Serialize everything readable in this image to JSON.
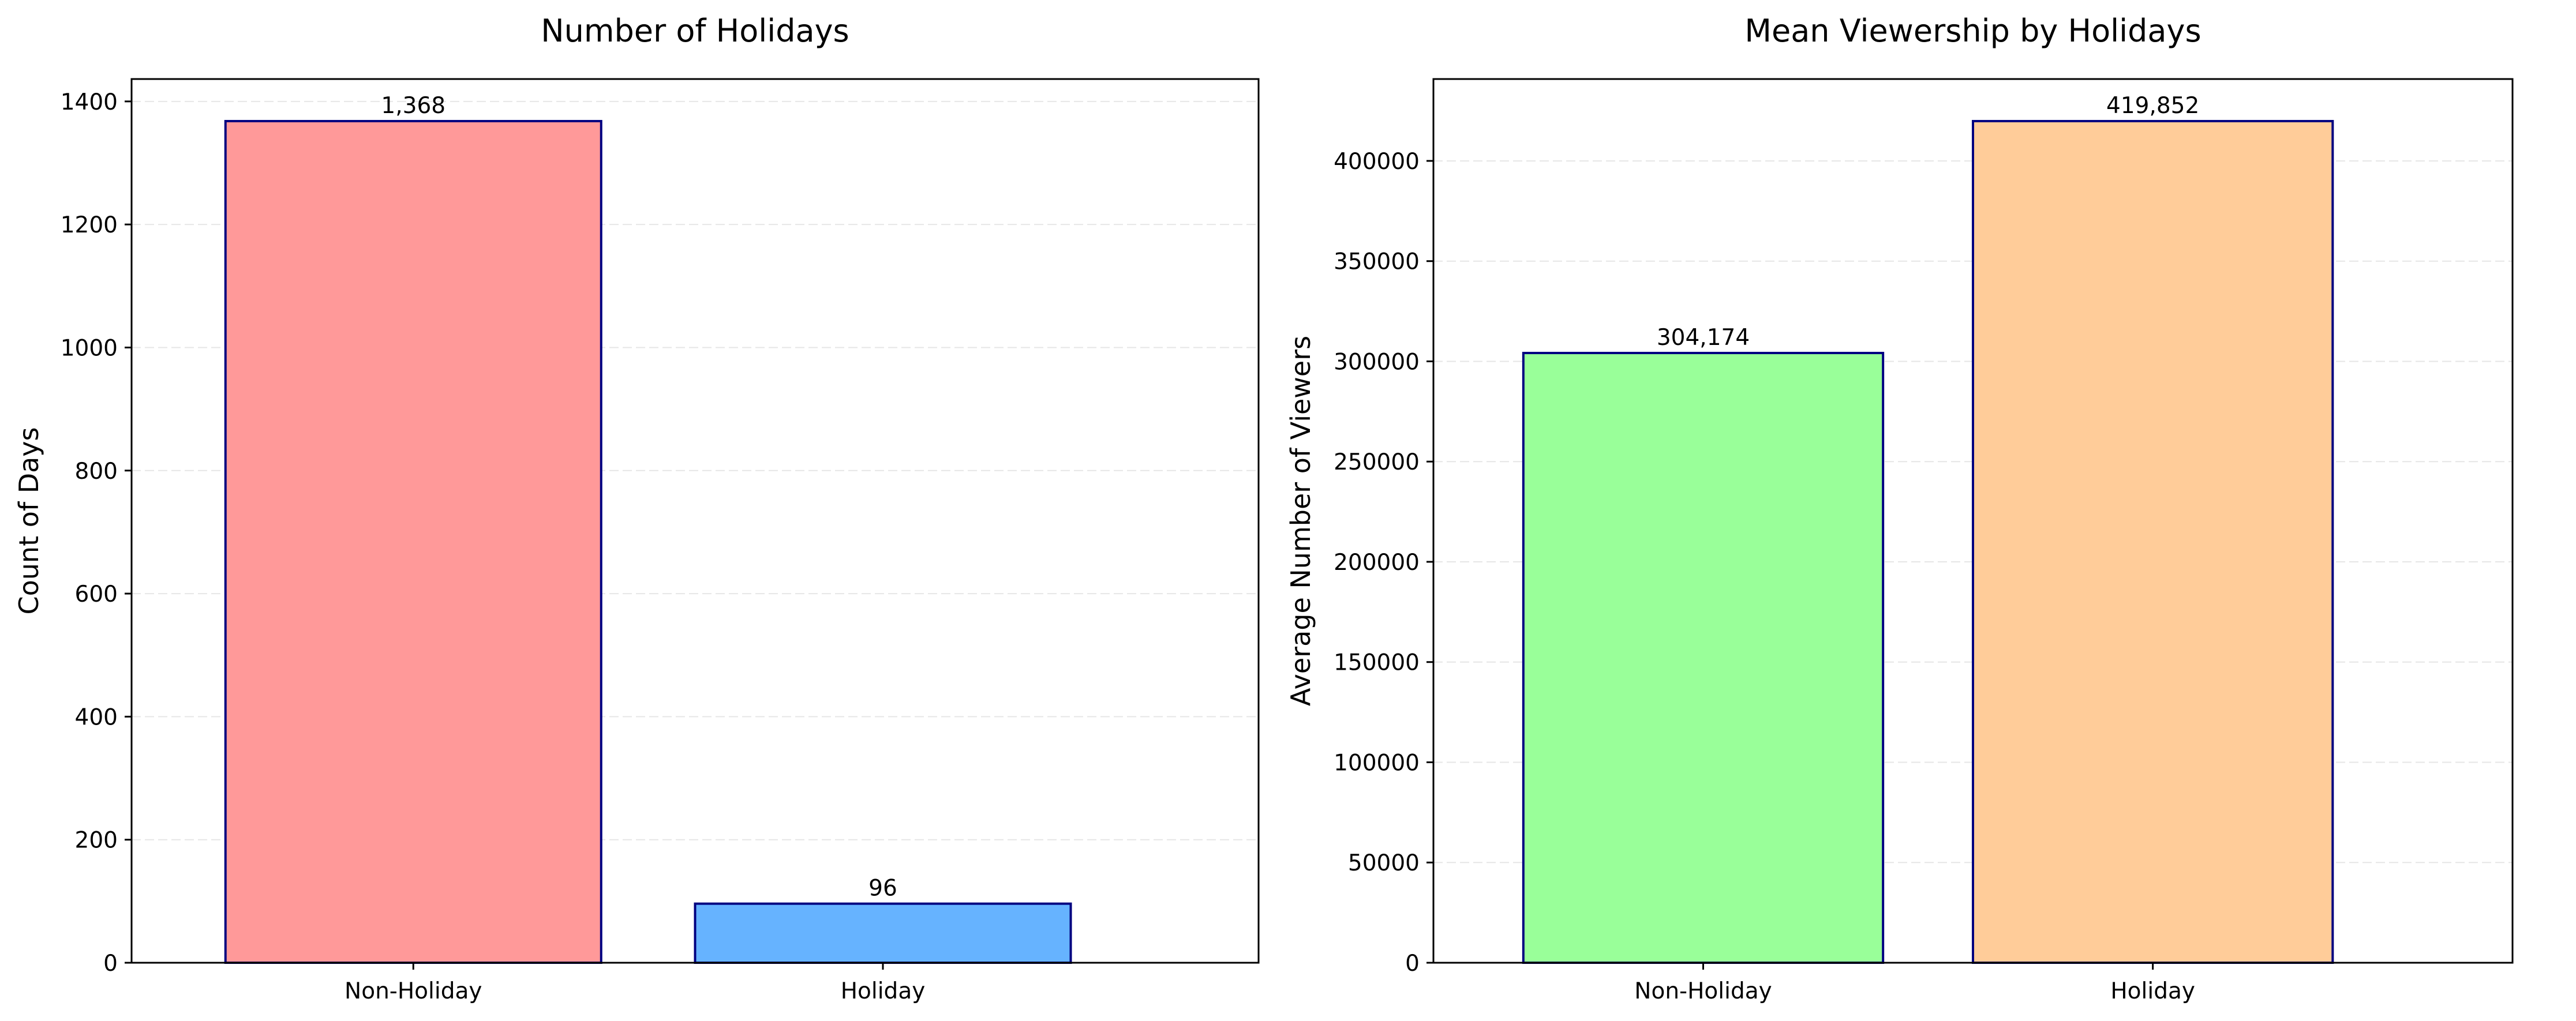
{
  "chart_data": [
    {
      "type": "bar",
      "title": "Number of Holidays",
      "xlabel": "",
      "ylabel": "Count of Days",
      "categories": [
        "Non-Holiday",
        "Holiday"
      ],
      "values": [
        1368,
        96
      ],
      "value_labels": [
        "1,368",
        "96"
      ],
      "colors": [
        "#ff9999",
        "#66b3ff"
      ],
      "edge_color": "#000080",
      "ylim": [
        0,
        1436.4
      ],
      "yticks": [
        0,
        200,
        400,
        600,
        800,
        1000,
        1200,
        1400
      ],
      "grid": "y-dashed"
    },
    {
      "type": "bar",
      "title": "Mean Viewership by Holidays",
      "xlabel": "",
      "ylabel": "Average Number of Viewers",
      "categories": [
        "Non-Holiday",
        "Holiday"
      ],
      "values": [
        304174,
        419852
      ],
      "value_labels": [
        "304,174",
        "419,852"
      ],
      "colors": [
        "#99ff99",
        "#ffcc99"
      ],
      "edge_color": "#000080",
      "ylim": [
        0,
        440844.6
      ],
      "yticks": [
        0,
        50000,
        100000,
        150000,
        200000,
        250000,
        300000,
        350000,
        400000
      ],
      "grid": "y-dashed"
    }
  ]
}
